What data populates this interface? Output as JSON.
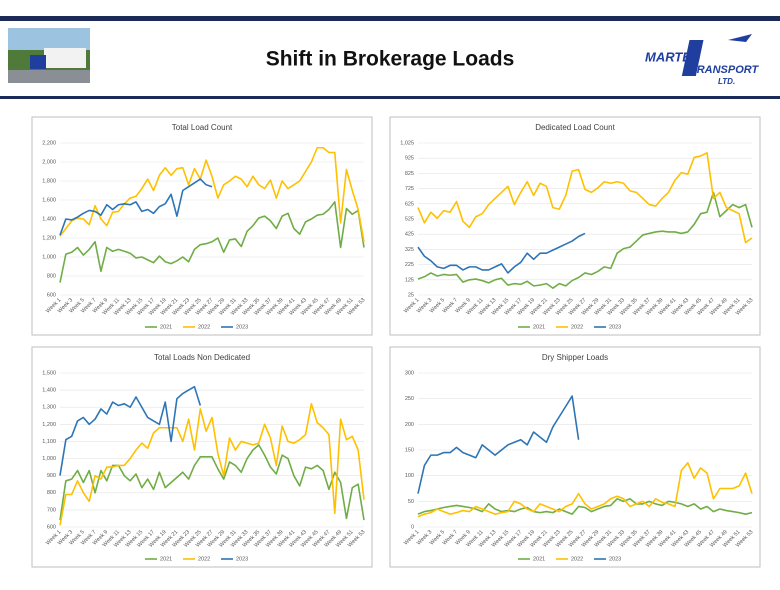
{
  "header": {
    "title": "Shift in Brokerage Loads"
  },
  "logo": {
    "line1": "MARTEN",
    "line2": "TRANSPORT",
    "line3": "LTD."
  },
  "chart_data": [
    {
      "type": "line",
      "title": "Total Load Count",
      "categories": [
        "Week 1",
        null,
        "Week 3",
        null,
        "Week 5",
        null,
        "Week 7",
        null,
        "Week 9",
        null,
        "Week 11",
        null,
        "Week 13",
        null,
        "Week 15",
        null,
        "Week 17",
        null,
        "Week 19",
        null,
        "Week 21",
        null,
        "Week 23",
        null,
        "Week 25",
        null,
        "Week 27",
        null,
        "Week 29",
        null,
        "Week 31",
        null,
        "Week 33",
        null,
        "Week 35",
        null,
        "Week 37",
        null,
        "Week 39",
        null,
        "Week 41",
        null,
        "Week 43",
        null,
        "Week 45",
        null,
        "Week 47",
        null,
        "Week 49",
        null,
        "Week 51",
        null,
        "Week 53"
      ],
      "ylim": [
        600,
        2200
      ],
      "yticks": [
        600,
        800,
        {
          "value": 1000,
          "label": "1,000"
        },
        {
          "value": 1200,
          "label": "1,200"
        },
        {
          "value": 1400,
          "label": "1,400"
        },
        {
          "value": 1600,
          "label": "1,600"
        },
        {
          "value": 1800,
          "label": "1,800"
        },
        {
          "value": 2000,
          "label": "2,000"
        },
        {
          "value": 2200,
          "label": "2,200"
        }
      ],
      "grid": true,
      "series": [
        {
          "name": "2021",
          "color": "#70ad47",
          "values": [
            730,
            1030,
            1050,
            1100,
            1020,
            1080,
            1160,
            850,
            1100,
            1060,
            1080,
            1060,
            1040,
            990,
            1000,
            970,
            940,
            1010,
            950,
            930,
            960,
            1000,
            950,
            1080,
            1130,
            1140,
            1160,
            1200,
            1050,
            1180,
            1190,
            1110,
            1270,
            1330,
            1410,
            1430,
            1380,
            1300,
            1430,
            1460,
            1300,
            1240,
            1370,
            1400,
            1440,
            1450,
            1500,
            1580,
            1100,
            1510,
            1450,
            1490,
            1100
          ]
        },
        {
          "name": "2022",
          "color": "#ffc000",
          "values": [
            1220,
            1300,
            1380,
            1410,
            1400,
            1340,
            1540,
            1400,
            1330,
            1470,
            1480,
            1560,
            1620,
            1640,
            1720,
            1820,
            1700,
            1860,
            1940,
            1860,
            1930,
            1940,
            1760,
            1930,
            1820,
            2020,
            1850,
            1620,
            1760,
            1800,
            1850,
            1820,
            1740,
            1850,
            1760,
            1720,
            1810,
            1620,
            1800,
            1720,
            1760,
            1800,
            1900,
            2000,
            2150,
            2150,
            2100,
            2100,
            1360,
            1920,
            1700,
            1500,
            1160
          ]
        },
        {
          "name": "2023",
          "color": "#2e75b6",
          "values": [
            1230,
            1400,
            1390,
            1420,
            1460,
            1490,
            1480,
            1440,
            1550,
            1500,
            1550,
            1560,
            1550,
            1580,
            1480,
            1500,
            1460,
            1530,
            1560,
            1660,
            1430,
            1700,
            1740,
            1780,
            1820,
            1760,
            1740,
            null,
            null,
            null,
            null,
            null,
            null,
            null,
            null,
            null,
            null,
            null,
            null,
            null,
            null,
            null,
            null,
            null,
            null,
            null,
            null,
            null,
            null,
            null,
            null,
            null,
            null
          ]
        }
      ]
    },
    {
      "type": "line",
      "title": "Dedicated Load Count",
      "categories": [
        "Week 1",
        null,
        "Week 3",
        null,
        "Week 5",
        null,
        "Week 7",
        null,
        "Week 9",
        null,
        "Week 11",
        null,
        "Week 13",
        null,
        "Week 15",
        null,
        "Week 17",
        null,
        "Week 19",
        null,
        "Week 21",
        null,
        "Week 23",
        null,
        "Week 25",
        null,
        "Week 27",
        null,
        "Week 29",
        null,
        "Week 31",
        null,
        "Week 33",
        null,
        "Week 35",
        null,
        "Week 37",
        null,
        "Week 39",
        null,
        "Week 41",
        null,
        "Week 43",
        null,
        "Week 45",
        null,
        "Week 47",
        null,
        "Week 49",
        null,
        "Week 51",
        null,
        "Week 53"
      ],
      "ylim": [
        25,
        1025
      ],
      "yticks": [
        25,
        125,
        225,
        325,
        425,
        525,
        625,
        725,
        825,
        925,
        {
          "value": 1025,
          "label": "1,025"
        }
      ],
      "grid": true,
      "series": [
        {
          "name": "2021",
          "color": "#70ad47",
          "values": [
            130,
            145,
            170,
            150,
            160,
            155,
            160,
            110,
            125,
            130,
            120,
            105,
            125,
            135,
            90,
            100,
            95,
            115,
            85,
            90,
            100,
            70,
            100,
            85,
            120,
            140,
            170,
            160,
            180,
            210,
            200,
            300,
            330,
            340,
            380,
            420,
            430,
            440,
            445,
            440,
            440,
            430,
            440,
            490,
            560,
            570,
            700,
            540,
            580,
            620,
            600,
            620,
            470
          ]
        },
        {
          "name": "2022",
          "color": "#ffc000",
          "values": [
            600,
            500,
            570,
            530,
            580,
            570,
            640,
            510,
            470,
            540,
            560,
            620,
            660,
            700,
            740,
            620,
            700,
            770,
            680,
            760,
            740,
            600,
            590,
            680,
            840,
            850,
            720,
            700,
            730,
            770,
            760,
            770,
            760,
            710,
            700,
            660,
            620,
            610,
            660,
            700,
            780,
            830,
            820,
            930,
            940,
            960,
            660,
            700,
            600,
            580,
            560,
            370,
            400
          ]
        },
        {
          "name": "2023",
          "color": "#2e75b6",
          "values": [
            340,
            280,
            250,
            210,
            200,
            220,
            220,
            190,
            210,
            210,
            190,
            190,
            210,
            230,
            170,
            210,
            240,
            300,
            260,
            300,
            300,
            320,
            340,
            360,
            380,
            410,
            430,
            null,
            null,
            null,
            null,
            null,
            null,
            null,
            null,
            null,
            null,
            null,
            null,
            null,
            null,
            null,
            null,
            null,
            null,
            null,
            null,
            null,
            null,
            null,
            null,
            null,
            null
          ]
        }
      ]
    },
    {
      "type": "line",
      "title": "Total Loads Non Dedicated",
      "categories": [
        "Week 1",
        null,
        "Week 3",
        null,
        "Week 5",
        null,
        "Week 7",
        null,
        "Week 9",
        null,
        "Week 11",
        null,
        "Week 13",
        null,
        "Week 15",
        null,
        "Week 17",
        null,
        "Week 19",
        null,
        "Week 21",
        null,
        "Week 23",
        null,
        "Week 25",
        null,
        "Week 27",
        null,
        "Week 29",
        null,
        "Week 31",
        null,
        "Week 33",
        null,
        "Week 35",
        null,
        "Week 37",
        null,
        "Week 39",
        null,
        "Week 41",
        null,
        "Week 43",
        null,
        "Week 45",
        null,
        "Week 47",
        null,
        "Week 49",
        null,
        "Week 51",
        null,
        "Week 53"
      ],
      "ylim": [
        600,
        1500
      ],
      "yticks": [
        600,
        700,
        800,
        900,
        {
          "value": 1000,
          "label": "1,000"
        },
        {
          "value": 1100,
          "label": "1,100"
        },
        {
          "value": 1200,
          "label": "1,200"
        },
        {
          "value": 1300,
          "label": "1,300"
        },
        {
          "value": 1400,
          "label": "1,400"
        },
        {
          "value": 1500,
          "label": "1,500"
        }
      ],
      "grid": true,
      "series": [
        {
          "name": "2021",
          "color": "#70ad47",
          "values": [
            640,
            870,
            880,
            930,
            860,
            930,
            800,
            930,
            870,
            960,
            960,
            900,
            870,
            910,
            830,
            880,
            820,
            920,
            830,
            860,
            890,
            920,
            880,
            960,
            1010,
            1010,
            1010,
            940,
            880,
            980,
            960,
            920,
            1000,
            1050,
            1080,
            1020,
            950,
            910,
            1020,
            1000,
            900,
            840,
            950,
            940,
            960,
            930,
            820,
            920,
            860,
            650,
            830,
            850,
            640
          ]
        },
        {
          "name": "2022",
          "color": "#ffc000",
          "values": [
            610,
            790,
            790,
            870,
            800,
            750,
            900,
            880,
            950,
            950,
            960,
            960,
            1000,
            1050,
            1090,
            1060,
            1150,
            1180,
            1180,
            1180,
            1180,
            1100,
            1230,
            1050,
            1290,
            1160,
            1240,
            1030,
            900,
            1120,
            1050,
            1100,
            1090,
            1080,
            1090,
            1200,
            1120,
            960,
            1190,
            1100,
            1090,
            1110,
            1140,
            1320,
            1210,
            1180,
            1140,
            680,
            1230,
            1110,
            1130,
            1050,
            760
          ]
        },
        {
          "name": "2023",
          "color": "#2e75b6",
          "values": [
            900,
            1110,
            1130,
            1220,
            1240,
            1200,
            1230,
            1290,
            1260,
            1330,
            1310,
            1320,
            1300,
            1360,
            1300,
            1240,
            1220,
            1200,
            1330,
            1100,
            1350,
            1380,
            1400,
            1420,
            1310,
            null,
            null,
            null,
            null,
            null,
            null,
            null,
            null,
            null,
            null,
            null,
            null,
            null,
            null,
            null,
            null,
            null,
            null,
            null,
            null,
            null,
            null,
            null,
            null,
            null,
            null,
            null,
            null
          ]
        }
      ]
    },
    {
      "type": "line",
      "title": "Dry Shipper Loads",
      "categories": [
        "Week 1",
        null,
        "Week 3",
        null,
        "Week 5",
        null,
        "Week 7",
        null,
        "Week 9",
        null,
        "Week 11",
        null,
        "Week 13",
        null,
        "Week 15",
        null,
        "Week 17",
        null,
        "Week 19",
        null,
        "Week 21",
        null,
        "Week 23",
        null,
        "Week 25",
        null,
        "Week 27",
        null,
        "Week 29",
        null,
        "Week 31",
        null,
        "Week 33",
        null,
        "Week 35",
        null,
        "Week 37",
        null,
        "Week 39",
        null,
        "Week 41",
        null,
        "Week 43",
        null,
        "Week 45",
        null,
        "Week 47",
        null,
        "Week 49",
        null,
        "Week 51",
        null,
        "Week 53"
      ],
      "ylim": [
        0,
        300
      ],
      "yticks": [
        0,
        50,
        100,
        150,
        200,
        250,
        300
      ],
      "grid": true,
      "series": [
        {
          "name": "2021",
          "color": "#70ad47",
          "values": [
            25,
            30,
            32,
            35,
            38,
            40,
            42,
            40,
            38,
            35,
            30,
            45,
            35,
            30,
            32,
            30,
            35,
            38,
            30,
            28,
            30,
            28,
            35,
            30,
            25,
            40,
            38,
            30,
            35,
            40,
            42,
            55,
            50,
            55,
            45,
            45,
            50,
            45,
            42,
            50,
            48,
            45,
            40,
            45,
            35,
            40,
            30,
            35,
            32,
            30,
            28,
            25,
            28
          ]
        },
        {
          "name": "2022",
          "color": "#ffc000",
          "values": [
            20,
            25,
            28,
            35,
            30,
            25,
            28,
            32,
            30,
            40,
            35,
            30,
            25,
            28,
            30,
            50,
            45,
            35,
            30,
            45,
            40,
            35,
            30,
            40,
            45,
            65,
            45,
            35,
            40,
            45,
            55,
            60,
            55,
            40,
            45,
            50,
            40,
            55,
            48,
            45,
            40,
            110,
            125,
            95,
            115,
            105,
            55,
            75,
            75,
            75,
            80,
            105,
            65
          ]
        },
        {
          "name": "2023",
          "color": "#2e75b6",
          "values": [
            65,
            120,
            140,
            140,
            145,
            145,
            155,
            145,
            140,
            135,
            160,
            150,
            140,
            150,
            160,
            165,
            170,
            160,
            185,
            175,
            165,
            195,
            215,
            235,
            255,
            170,
            null,
            null,
            null,
            null,
            null,
            null,
            null,
            null,
            null,
            null,
            null,
            null,
            null,
            null,
            null,
            null,
            null,
            null,
            null,
            null,
            null,
            null,
            null,
            null,
            null,
            null,
            null
          ]
        }
      ]
    }
  ]
}
